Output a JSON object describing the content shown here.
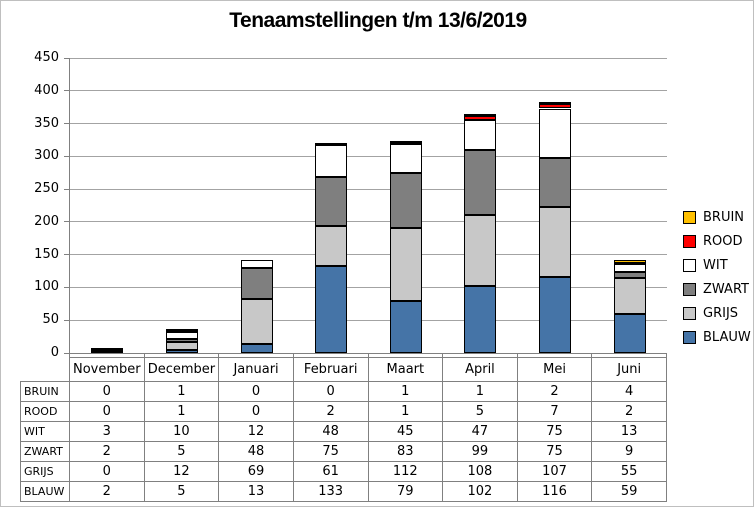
{
  "chart_data": {
    "type": "bar",
    "stacked": true,
    "title": "Tenaamstellingen t/m 13/6/2019",
    "categories": [
      "November",
      "December",
      "Januari",
      "Februari",
      "Maart",
      "April",
      "Mei",
      "Juni"
    ],
    "series": [
      {
        "name": "BLAUW",
        "color": "#4574a7",
        "values": [
          2,
          5,
          13,
          133,
          79,
          102,
          116,
          59
        ]
      },
      {
        "name": "GRIJS",
        "color": "#c8c8c8",
        "values": [
          0,
          12,
          69,
          61,
          112,
          108,
          107,
          55
        ]
      },
      {
        "name": "ZWART",
        "color": "#7f7f7f",
        "values": [
          2,
          5,
          48,
          75,
          83,
          99,
          75,
          9
        ]
      },
      {
        "name": "WIT",
        "color": "#ffffff",
        "values": [
          3,
          10,
          12,
          48,
          45,
          47,
          75,
          13
        ]
      },
      {
        "name": "ROOD",
        "color": "#ff0000",
        "values": [
          0,
          1,
          0,
          2,
          1,
          5,
          7,
          2
        ]
      },
      {
        "name": "BRUIN",
        "color": "#ffc000",
        "values": [
          0,
          1,
          0,
          0,
          1,
          1,
          2,
          4
        ]
      }
    ],
    "legend_order": [
      "BRUIN",
      "ROOD",
      "WIT",
      "ZWART",
      "GRIJS",
      "BLAUW"
    ],
    "legend_position": "right",
    "y_ticks": [
      450,
      400,
      350,
      300,
      250,
      200,
      150,
      100,
      50,
      0
    ],
    "ylim": [
      0,
      450
    ],
    "grid": true,
    "xlabel": "",
    "ylabel": ""
  },
  "table": {
    "column_headers": [
      "November",
      "December",
      "Januari",
      "Februari",
      "Maart",
      "April",
      "Mei",
      "Juni"
    ],
    "rows": [
      {
        "label": "BRUIN",
        "values": [
          0,
          1,
          0,
          0,
          1,
          1,
          2,
          4
        ]
      },
      {
        "label": "ROOD",
        "values": [
          0,
          1,
          0,
          2,
          1,
          5,
          7,
          2
        ]
      },
      {
        "label": "WIT",
        "values": [
          3,
          10,
          12,
          48,
          45,
          47,
          75,
          13
        ]
      },
      {
        "label": "ZWART",
        "values": [
          2,
          5,
          48,
          75,
          83,
          99,
          75,
          9
        ]
      },
      {
        "label": "GRIJS",
        "values": [
          0,
          12,
          69,
          61,
          112,
          108,
          107,
          55
        ]
      },
      {
        "label": "BLAUW",
        "values": [
          2,
          5,
          13,
          133,
          79,
          102,
          116,
          59
        ]
      }
    ]
  },
  "colors": {
    "gridline": "#a3a3a3",
    "axis": "#808080",
    "segment_border": "#000000",
    "table_border": "#808080",
    "frame_border": "#bfbfbf"
  }
}
